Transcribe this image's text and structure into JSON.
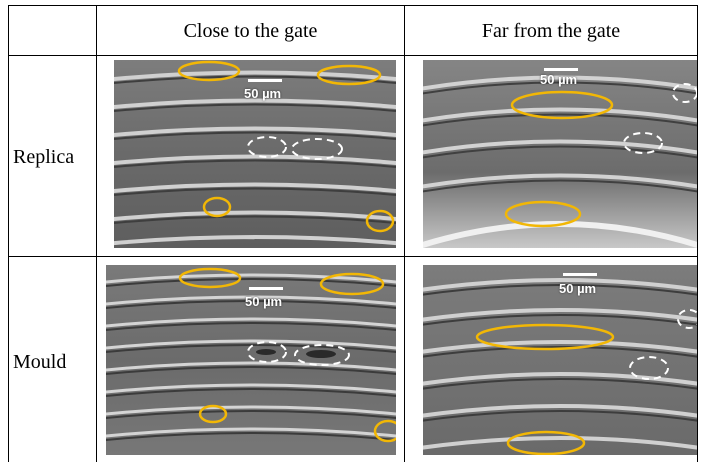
{
  "table": {
    "col_headers": [
      "Close to the gate",
      "Far from the gate"
    ],
    "rows": [
      {
        "label": "Replica"
      },
      {
        "label": "Mould"
      }
    ]
  },
  "micrographs": {
    "scale_label": "50 µm",
    "highlight_color": "#f2b705",
    "defect_color": "#ffffff"
  }
}
